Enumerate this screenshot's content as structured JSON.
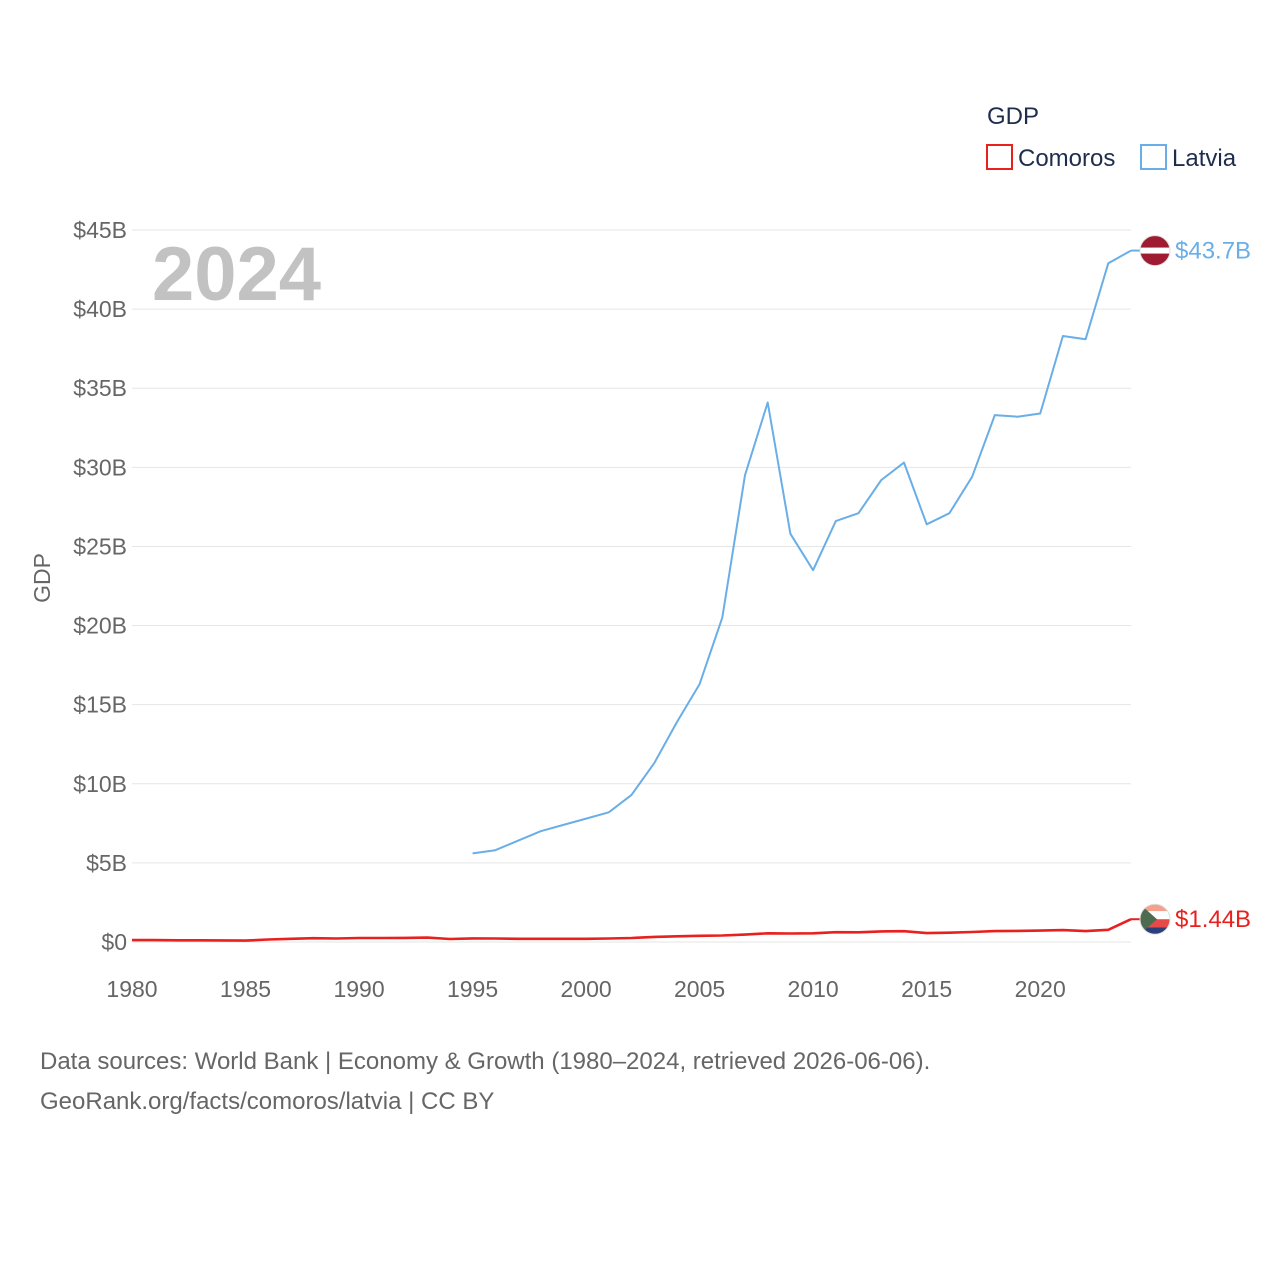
{
  "chart_data": {
    "type": "line",
    "title": "GDP",
    "ylabel": "GDP",
    "xlabel": "",
    "year_label": "2024",
    "xlim": [
      1980,
      2024
    ],
    "ylim": [
      0,
      45
    ],
    "x_ticks": [
      1980,
      1985,
      1990,
      1995,
      2000,
      2005,
      2010,
      2015,
      2020
    ],
    "x_tick_labels": [
      "1980",
      "1985",
      "1990",
      "1995",
      "2000",
      "2005",
      "2010",
      "2015",
      "2020"
    ],
    "y_ticks": [
      0,
      5,
      10,
      15,
      20,
      25,
      30,
      35,
      40,
      45
    ],
    "y_tick_labels": [
      "$0",
      "$5B",
      "$10B",
      "$15B",
      "$20B",
      "$25B",
      "$30B",
      "$35B",
      "$40B",
      "$45B"
    ],
    "legend": {
      "title": "GDP",
      "position": "top-right"
    },
    "grid": true,
    "series": [
      {
        "name": "Comoros",
        "color": "#e8201e",
        "end_label": "$1.44B",
        "flag_icon": "comoros-flag-icon",
        "x": [
          1980,
          1981,
          1982,
          1983,
          1984,
          1985,
          1986,
          1987,
          1988,
          1989,
          1990,
          1991,
          1992,
          1993,
          1994,
          1995,
          1996,
          1997,
          1998,
          1999,
          2000,
          2001,
          2002,
          2003,
          2004,
          2005,
          2006,
          2007,
          2008,
          2009,
          2010,
          2011,
          2012,
          2013,
          2014,
          2015,
          2016,
          2017,
          2018,
          2019,
          2020,
          2021,
          2022,
          2023,
          2024
        ],
        "values": [
          0.12,
          0.12,
          0.11,
          0.11,
          0.1,
          0.09,
          0.16,
          0.2,
          0.24,
          0.22,
          0.25,
          0.25,
          0.26,
          0.28,
          0.19,
          0.23,
          0.22,
          0.2,
          0.2,
          0.2,
          0.2,
          0.22,
          0.25,
          0.32,
          0.36,
          0.39,
          0.41,
          0.47,
          0.55,
          0.54,
          0.55,
          0.62,
          0.61,
          0.67,
          0.68,
          0.56,
          0.59,
          0.63,
          0.69,
          0.7,
          0.72,
          0.75,
          0.69,
          0.77,
          1.44
        ]
      },
      {
        "name": "Latvia",
        "color": "#6aaee8",
        "end_label": "$43.7B",
        "flag_icon": "latvia-flag-icon",
        "x": [
          1995,
          1996,
          1997,
          1998,
          1999,
          2000,
          2001,
          2002,
          2003,
          2004,
          2005,
          2006,
          2007,
          2008,
          2009,
          2010,
          2011,
          2012,
          2013,
          2014,
          2015,
          2016,
          2017,
          2018,
          2019,
          2020,
          2021,
          2022,
          2023,
          2024
        ],
        "values": [
          5.6,
          5.8,
          6.4,
          7.0,
          7.4,
          7.8,
          8.2,
          9.3,
          11.3,
          13.9,
          16.3,
          20.5,
          29.5,
          34.1,
          25.8,
          23.5,
          26.6,
          27.1,
          29.2,
          30.3,
          26.4,
          27.1,
          29.4,
          33.3,
          33.2,
          33.4,
          38.3,
          38.1,
          42.9,
          43.7
        ]
      }
    ]
  },
  "source": {
    "line1": "Data sources: World Bank | Economy & Growth (1980–2024, retrieved 2026-06-06).",
    "line2": "GeoRank.org/facts/comoros/latvia | CC BY"
  }
}
